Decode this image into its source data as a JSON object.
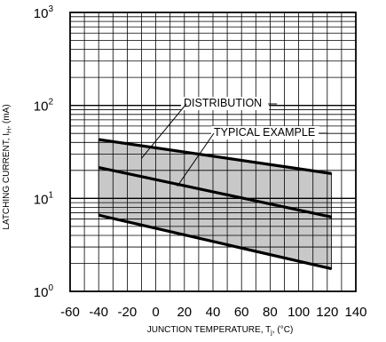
{
  "chart_data": {
    "type": "line",
    "title": "",
    "xlabel": "JUNCTION TEMPERATURE, T",
    "xlabel_sub": "j",
    "xlabel_unit": ", (°C)",
    "ylabel": "LATCHING CURRENT, I",
    "ylabel_sub": "H",
    "ylabel_unit": ", (mA)",
    "xlim": [
      -60,
      140
    ],
    "ylim": [
      1,
      1000
    ],
    "yscale": "log",
    "grid": true,
    "x_ticks": [
      -60,
      -40,
      -20,
      0,
      20,
      40,
      60,
      80,
      100,
      120,
      140
    ],
    "y_ticks": [
      {
        "base": "10",
        "exp": "0",
        "value": 1
      },
      {
        "base": "10",
        "exp": "1",
        "value": 10
      },
      {
        "base": "10",
        "exp": "2",
        "value": 100
      },
      {
        "base": "10",
        "exp": "3",
        "value": 1000
      }
    ],
    "series": [
      {
        "x": [
          -40,
          123
        ],
        "y": [
          43,
          18.5
        ]
      },
      {
        "x": [
          -40,
          123
        ],
        "y": [
          21.5,
          6.3
        ]
      },
      {
        "x": [
          -40,
          123
        ],
        "y": [
          6.6,
          1.75
        ]
      }
    ],
    "band": {
      "x": [
        -40,
        123
      ],
      "upper": [
        43,
        18.5
      ],
      "lower": [
        6.6,
        1.75
      ],
      "color": "#c8c8c8"
    },
    "annotations": [
      {
        "text": "DISTRIBUTION",
        "target": {
          "x": -10,
          "y": 27
        }
      },
      {
        "text": "TYPICAL EXAMPLE",
        "target": {
          "x": 15,
          "y": 13.5
        }
      }
    ]
  }
}
